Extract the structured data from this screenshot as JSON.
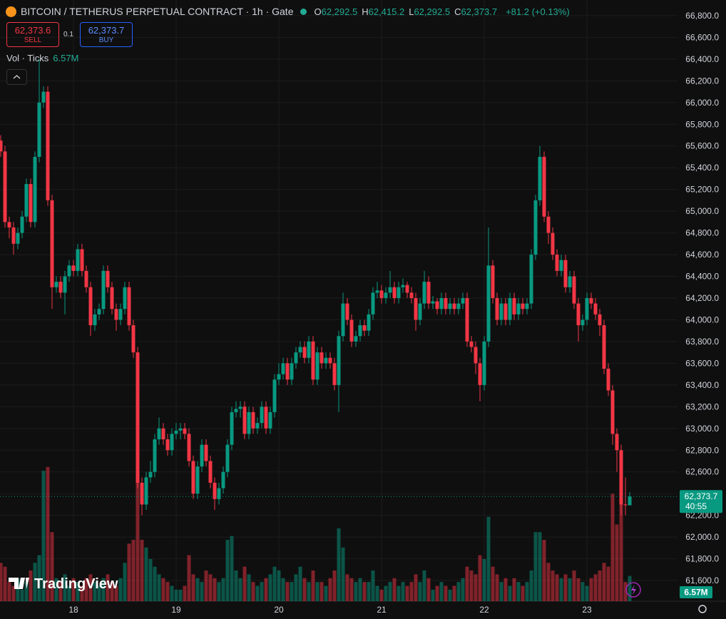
{
  "chart_data": {
    "type": "candlestick",
    "title": "BITCOIN / TETHERUS PERPETUAL CONTRACT · 1h · Gate",
    "legend": [
      {
        "label": "O",
        "value": "62,292.5"
      },
      {
        "label": "H",
        "value": "62,415.2"
      },
      {
        "label": "L",
        "value": "62,292.5"
      },
      {
        "label": "C",
        "value": "62,373.7"
      }
    ],
    "change": "+81.2 (+0.13%)",
    "sell": {
      "price": "62,373.6",
      "label": "SELL"
    },
    "spread": "0.1",
    "buy": {
      "price": "62,373.7",
      "label": "BUY"
    },
    "volume_title": "Vol · Ticks",
    "volume_value": "6.57M",
    "price_label": "62,373.7",
    "countdown": "40:55",
    "volume_label": "6.57M",
    "watermark": "TradingView",
    "up_color": "#089981",
    "down_color": "#f23645",
    "grid": true,
    "ylim": [
      61410,
      66944
    ],
    "volume_lim": [
      0,
      45
    ],
    "yticks": [
      {
        "value": 61600,
        "label": "61,600.0"
      },
      {
        "value": 61800,
        "label": "61,800.0"
      },
      {
        "value": 62000,
        "label": "62,000.0"
      },
      {
        "value": 62200,
        "label": "62,200.0"
      },
      {
        "value": 62400,
        "label": "62,400.0"
      },
      {
        "value": 62600,
        "label": "62,600.0"
      },
      {
        "value": 62800,
        "label": "62,800.0"
      },
      {
        "value": 63000,
        "label": "63,000.0"
      },
      {
        "value": 63200,
        "label": "63,200.0"
      },
      {
        "value": 63400,
        "label": "63,400.0"
      },
      {
        "value": 63600,
        "label": "63,600.0"
      },
      {
        "value": 63800,
        "label": "63,800.0"
      },
      {
        "value": 64000,
        "label": "64,000.0"
      },
      {
        "value": 64200,
        "label": "64,200.0"
      },
      {
        "value": 64400,
        "label": "64,400.0"
      },
      {
        "value": 64600,
        "label": "64,600.0"
      },
      {
        "value": 64800,
        "label": "64,800.0"
      },
      {
        "value": 65000,
        "label": "65,000.0"
      },
      {
        "value": 65200,
        "label": "65,200.0"
      },
      {
        "value": 65400,
        "label": "65,400.0"
      },
      {
        "value": 65600,
        "label": "65,600.0"
      },
      {
        "value": 65800,
        "label": "65,800.0"
      },
      {
        "value": 66000,
        "label": "66,000.0"
      },
      {
        "value": 66200,
        "label": "66,200.0"
      },
      {
        "value": 66400,
        "label": "66,400.0"
      },
      {
        "value": 66600,
        "label": "66,600.0"
      },
      {
        "value": 66800,
        "label": "66,800.0"
      }
    ],
    "categories": [
      null,
      null,
      null,
      null,
      null,
      null,
      null,
      null,
      null,
      null,
      null,
      null,
      null,
      null,
      null,
      null,
      null,
      "18",
      null,
      null,
      null,
      null,
      null,
      null,
      null,
      null,
      null,
      null,
      null,
      null,
      null,
      null,
      null,
      null,
      null,
      null,
      null,
      null,
      null,
      null,
      null,
      "19",
      null,
      null,
      null,
      null,
      null,
      null,
      null,
      null,
      null,
      null,
      null,
      null,
      null,
      null,
      null,
      null,
      null,
      null,
      null,
      null,
      null,
      null,
      null,
      "20",
      null,
      null,
      null,
      null,
      null,
      null,
      null,
      null,
      null,
      null,
      null,
      null,
      null,
      null,
      null,
      null,
      null,
      null,
      null,
      null,
      null,
      null,
      null,
      "21",
      null,
      null,
      null,
      null,
      null,
      null,
      null,
      null,
      null,
      null,
      null,
      null,
      null,
      null,
      null,
      null,
      null,
      null,
      null,
      null,
      null,
      null,
      null,
      "22",
      null,
      null,
      null,
      null,
      null,
      null,
      null,
      null,
      null,
      null,
      null,
      null,
      null,
      null,
      null,
      null,
      null,
      null,
      null,
      null,
      null,
      null,
      null,
      "23",
      null,
      null,
      null,
      null,
      null,
      null,
      null,
      null,
      null,
      null
    ],
    "open": [
      65650,
      65550,
      64900,
      64850,
      64700,
      64800,
      64950,
      65250,
      64900,
      65500,
      66000,
      66100,
      65100,
      64300,
      64350,
      64250,
      64400,
      64500,
      64450,
      64650,
      64450,
      64300,
      63950,
      64050,
      64100,
      64450,
      64300,
      64100,
      64000,
      64100,
      64300,
      63950,
      63700,
      62500,
      62300,
      62550,
      62600,
      62900,
      63000,
      62900,
      62800,
      62950,
      62980,
      63000,
      62950,
      62700,
      62400,
      62650,
      62850,
      62700,
      62500,
      62350,
      62450,
      62600,
      62850,
      63150,
      63180,
      63200,
      62950,
      63150,
      63000,
      63050,
      63200,
      63000,
      63150,
      63450,
      63500,
      63600,
      63450,
      63600,
      63700,
      63750,
      63650,
      63800,
      63450,
      63700,
      63600,
      63650,
      63600,
      63400,
      63850,
      64150,
      64000,
      63800,
      63850,
      63950,
      63900,
      64050,
      64250,
      64270,
      64200,
      64250,
      64300,
      64200,
      64300,
      64320,
      64250,
      64200,
      64000,
      64150,
      64350,
      64150,
      64170,
      64100,
      64200,
      64100,
      64150,
      64100,
      64150,
      64200,
      63800,
      63750,
      63600,
      63400,
      63800,
      64500,
      64200,
      64000,
      64150,
      64000,
      64200,
      64050,
      64150,
      64100,
      64150,
      64600,
      65100,
      65500,
      64950,
      64800,
      64600,
      64450,
      64550,
      64300,
      64400,
      64150,
      63950,
      64000,
      64200,
      64150,
      64050,
      63950,
      63550,
      63350,
      62950,
      62800,
      62300,
      62292.5
    ],
    "high": [
      65700,
      65600,
      64950,
      64900,
      64850,
      65000,
      65300,
      65300,
      65550,
      66400,
      66150,
      66150,
      65150,
      64400,
      64400,
      64450,
      64550,
      64550,
      64700,
      64700,
      64500,
      64350,
      64100,
      64150,
      64500,
      64500,
      64350,
      64150,
      64150,
      64350,
      64350,
      64000,
      63750,
      62550,
      62600,
      62700,
      62950,
      63100,
      63050,
      62950,
      63000,
      63050,
      63050,
      63050,
      63000,
      62750,
      62700,
      62900,
      62900,
      62750,
      62550,
      62500,
      62650,
      62900,
      63200,
      63250,
      63250,
      63250,
      63200,
      63200,
      63100,
      63250,
      63250,
      63200,
      63500,
      63600,
      63650,
      63650,
      63650,
      63750,
      63800,
      63800,
      63850,
      63850,
      63750,
      63750,
      63700,
      63700,
      63650,
      63900,
      64250,
      64200,
      64050,
      63900,
      64000,
      64000,
      64100,
      64300,
      64350,
      64320,
      64300,
      64450,
      64350,
      64350,
      64380,
      64350,
      64300,
      64250,
      64200,
      64450,
      64400,
      64220,
      64200,
      64250,
      64250,
      64200,
      64200,
      64200,
      64250,
      64250,
      63850,
      63800,
      63650,
      63850,
      64850,
      64550,
      64250,
      64200,
      64200,
      64250,
      64250,
      64200,
      64200,
      64200,
      64650,
      65150,
      65600,
      65550,
      65000,
      64850,
      64650,
      64600,
      64600,
      64450,
      64450,
      64200,
      64050,
      64250,
      64250,
      64200,
      64100,
      64000,
      63600,
      63400,
      63000,
      62850,
      62550,
      62415.2
    ],
    "low": [
      65500,
      64850,
      64750,
      64600,
      64650,
      64750,
      64900,
      64850,
      64850,
      65450,
      65950,
      65050,
      64100,
      64250,
      64200,
      64050,
      64350,
      64400,
      64400,
      64400,
      64250,
      63850,
      63900,
      64000,
      64050,
      64250,
      64050,
      63900,
      63950,
      64050,
      63900,
      63650,
      62450,
      62200,
      62250,
      62500,
      62550,
      62850,
      62850,
      62750,
      62750,
      62900,
      62900,
      62900,
      62650,
      62350,
      62350,
      62600,
      62650,
      62450,
      62250,
      62300,
      62400,
      62550,
      62800,
      63100,
      63100,
      62900,
      62900,
      62950,
      62950,
      63000,
      62950,
      62950,
      63100,
      63400,
      63450,
      63400,
      63400,
      63550,
      63650,
      63600,
      63600,
      63400,
      63400,
      63550,
      63550,
      63550,
      63350,
      63150,
      63800,
      63950,
      63750,
      63750,
      63800,
      63850,
      63850,
      64000,
      64200,
      64150,
      64150,
      64200,
      64150,
      64150,
      64250,
      64200,
      64150,
      63900,
      63950,
      64100,
      64100,
      64100,
      64050,
      64050,
      64050,
      64050,
      64050,
      64050,
      64100,
      63750,
      63700,
      63500,
      63250,
      63350,
      63750,
      64150,
      63950,
      63950,
      63950,
      63950,
      64000,
      64000,
      64050,
      64050,
      64100,
      64550,
      65050,
      64900,
      64700,
      64550,
      64400,
      64400,
      64250,
      64250,
      64100,
      63800,
      63900,
      63950,
      64100,
      64000,
      63850,
      63500,
      63300,
      62850,
      62600,
      62200,
      62200,
      62292.5
    ],
    "close": [
      65550,
      64900,
      64850,
      64700,
      64800,
      64950,
      65250,
      64900,
      65500,
      66000,
      66100,
      65100,
      64300,
      64350,
      64250,
      64400,
      64500,
      64450,
      64650,
      64450,
      64300,
      63950,
      64050,
      64100,
      64450,
      64300,
      64100,
      64000,
      64100,
      64300,
      63950,
      63700,
      62500,
      62300,
      62550,
      62600,
      62900,
      63000,
      62900,
      62800,
      62950,
      62980,
      63000,
      62950,
      62700,
      62400,
      62650,
      62850,
      62700,
      62500,
      62350,
      62450,
      62600,
      62850,
      63150,
      63180,
      63200,
      62950,
      63150,
      63000,
      63050,
      63200,
      63000,
      63150,
      63450,
      63500,
      63600,
      63450,
      63600,
      63700,
      63750,
      63650,
      63800,
      63450,
      63700,
      63600,
      63650,
      63600,
      63400,
      63850,
      64150,
      64000,
      63800,
      63850,
      63950,
      63900,
      64050,
      64250,
      64270,
      64200,
      64250,
      64300,
      64200,
      64300,
      64320,
      64250,
      64200,
      64000,
      64150,
      64350,
      64150,
      64170,
      64100,
      64200,
      64100,
      64150,
      64100,
      64150,
      64200,
      63800,
      63750,
      63600,
      63400,
      63800,
      64500,
      64200,
      64000,
      64150,
      64000,
      64200,
      64050,
      64150,
      64100,
      64150,
      64600,
      65100,
      65500,
      64950,
      64800,
      64600,
      64450,
      64550,
      64300,
      64400,
      64150,
      63950,
      64000,
      64200,
      64150,
      64050,
      63950,
      63550,
      63350,
      62950,
      62800,
      62300,
      62292.5,
      62373.7
    ],
    "volume": [
      10,
      9,
      5,
      4,
      6,
      3,
      5,
      8,
      10,
      12,
      34,
      35,
      18,
      6,
      5,
      7,
      4,
      6,
      5,
      4,
      6,
      7,
      5,
      4,
      6,
      7,
      5,
      4,
      6,
      10,
      15,
      16,
      32,
      16,
      14,
      11,
      9,
      7,
      6,
      5,
      4,
      3,
      3,
      4,
      12,
      7,
      6,
      5,
      8,
      7,
      6,
      5,
      6,
      16,
      17,
      8,
      6,
      9,
      7,
      5,
      4,
      5,
      6,
      7,
      9,
      8,
      6,
      5,
      5,
      7,
      9,
      6,
      5,
      8,
      5,
      5,
      4,
      6,
      8,
      19,
      14,
      7,
      6,
      5,
      6,
      5,
      5,
      8,
      4,
      3,
      4,
      5,
      6,
      4,
      5,
      4,
      5,
      7,
      5,
      8,
      6,
      3,
      4,
      5,
      4,
      3,
      4,
      5,
      6,
      9,
      8,
      7,
      12,
      11,
      22,
      9,
      7,
      5,
      6,
      4,
      6,
      5,
      4,
      5,
      8,
      18,
      18,
      16,
      10,
      8,
      7,
      6,
      7,
      6,
      8,
      6,
      5,
      4,
      6,
      7,
      8,
      10,
      9,
      28,
      20,
      26,
      5,
      6.57
    ]
  }
}
